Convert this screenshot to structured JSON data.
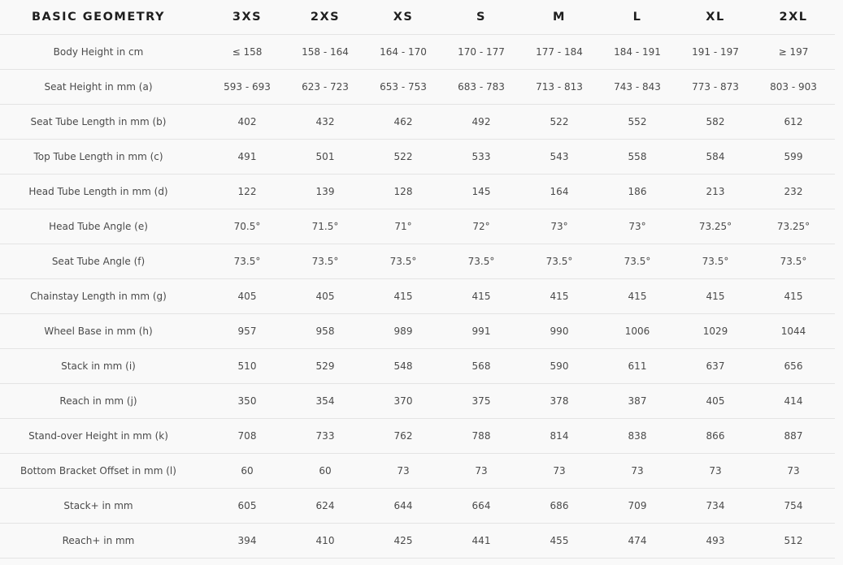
{
  "header": {
    "title": "BASIC GEOMETRY",
    "sizes": [
      "3XS",
      "2XS",
      "XS",
      "S",
      "M",
      "L",
      "XL",
      "2XL"
    ]
  },
  "rows": [
    {
      "label": "Body Height in cm",
      "values": [
        "≤ 158",
        "158 - 164",
        "164 - 170",
        "170 - 177",
        "177 - 184",
        "184 - 191",
        "191 - 197",
        "≥ 197"
      ]
    },
    {
      "label": "Seat Height in mm (a)",
      "values": [
        "593 - 693",
        "623 - 723",
        "653 - 753",
        "683 - 783",
        "713 - 813",
        "743 - 843",
        "773 - 873",
        "803 - 903"
      ]
    },
    {
      "label": "Seat Tube Length in mm (b)",
      "values": [
        "402",
        "432",
        "462",
        "492",
        "522",
        "552",
        "582",
        "612"
      ]
    },
    {
      "label": "Top Tube Length in mm (c)",
      "values": [
        "491",
        "501",
        "522",
        "533",
        "543",
        "558",
        "584",
        "599"
      ]
    },
    {
      "label": "Head Tube Length in mm (d)",
      "values": [
        "122",
        "139",
        "128",
        "145",
        "164",
        "186",
        "213",
        "232"
      ]
    },
    {
      "label": "Head Tube Angle (e)",
      "values": [
        "70.5°",
        "71.5°",
        "71°",
        "72°",
        "73°",
        "73°",
        "73.25°",
        "73.25°"
      ]
    },
    {
      "label": "Seat Tube Angle (f)",
      "values": [
        "73.5°",
        "73.5°",
        "73.5°",
        "73.5°",
        "73.5°",
        "73.5°",
        "73.5°",
        "73.5°"
      ]
    },
    {
      "label": "Chainstay Length in mm (g)",
      "values": [
        "405",
        "405",
        "415",
        "415",
        "415",
        "415",
        "415",
        "415"
      ]
    },
    {
      "label": "Wheel Base in mm (h)",
      "values": [
        "957",
        "958",
        "989",
        "991",
        "990",
        "1006",
        "1029",
        "1044"
      ]
    },
    {
      "label": "Stack in mm (i)",
      "values": [
        "510",
        "529",
        "548",
        "568",
        "590",
        "611",
        "637",
        "656"
      ]
    },
    {
      "label": "Reach in mm (j)",
      "values": [
        "350",
        "354",
        "370",
        "375",
        "378",
        "387",
        "405",
        "414"
      ]
    },
    {
      "label": "Stand-over Height in mm (k)",
      "values": [
        "708",
        "733",
        "762",
        "788",
        "814",
        "838",
        "866",
        "887"
      ]
    },
    {
      "label": "Bottom Bracket Offset in mm (l)",
      "values": [
        "60",
        "60",
        "73",
        "73",
        "73",
        "73",
        "73",
        "73"
      ]
    },
    {
      "label": "Stack+ in mm",
      "values": [
        "605",
        "624",
        "644",
        "664",
        "686",
        "709",
        "734",
        "754"
      ]
    },
    {
      "label": "Reach+ in mm",
      "values": [
        "394",
        "410",
        "425",
        "441",
        "455",
        "474",
        "493",
        "512"
      ]
    }
  ]
}
